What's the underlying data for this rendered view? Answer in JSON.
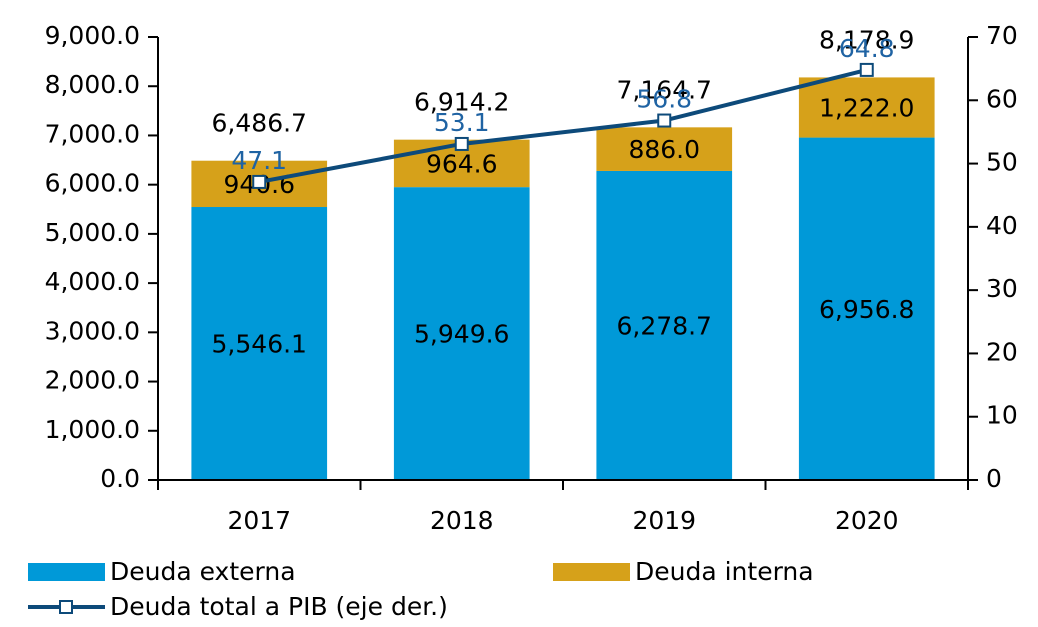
{
  "chart_data": {
    "type": "stacked_bar_line",
    "categories": [
      "2017",
      "2018",
      "2019",
      "2020"
    ],
    "series": [
      {
        "name": "Deuda externa",
        "color": "#0099d8",
        "values": [
          5546.1,
          5949.6,
          6278.7,
          6956.8
        ],
        "value_labels": [
          "5,546.1",
          "5,949.6",
          "6,278.7",
          "6,956.8"
        ]
      },
      {
        "name": "Deuda interna",
        "color": "#d6a11a",
        "values": [
          940.6,
          964.6,
          886.0,
          1222.0
        ],
        "value_labels": [
          "940.6",
          "964.6",
          "886.0",
          "1,222.0"
        ]
      },
      {
        "name": "Deuda total a PIB (eje der.)",
        "color": "#0d4a7a",
        "axis": "y2",
        "values": [
          47.1,
          53.1,
          56.8,
          64.8
        ],
        "label_color": "#1f63a3"
      }
    ],
    "totals": [
      6486.7,
      6914.2,
      7164.7,
      8178.9
    ],
    "total_labels": [
      "6,486.7",
      "6,914.2",
      "7,164.7",
      "8,178.9"
    ],
    "ylim": [
      0,
      9000
    ],
    "yticks": [
      {
        "value": 0,
        "label": "0.0"
      },
      {
        "value": 1000,
        "label": "1,000.0"
      },
      {
        "value": 2000,
        "label": "2,000.0"
      },
      {
        "value": 3000,
        "label": "3,000.0"
      },
      {
        "value": 4000,
        "label": "4,000.0"
      },
      {
        "value": 5000,
        "label": "5,000.0"
      },
      {
        "value": 6000,
        "label": "6,000.0"
      },
      {
        "value": 7000,
        "label": "7,000.0"
      },
      {
        "value": 8000,
        "label": "8,000.0"
      },
      {
        "value": 9000,
        "label": "9,000.0"
      }
    ],
    "y2lim": [
      0,
      70
    ],
    "y2ticks": [
      0,
      10,
      20,
      30,
      40,
      50,
      60,
      70
    ],
    "grid": false
  }
}
